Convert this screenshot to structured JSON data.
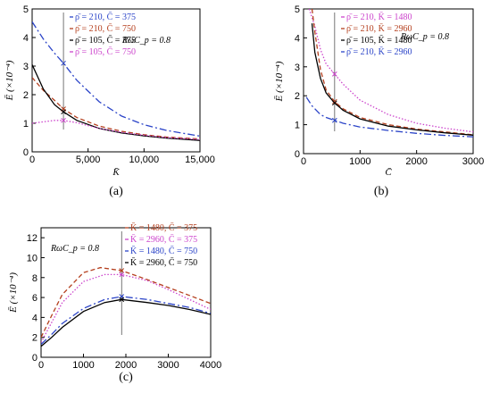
{
  "chart_data": [
    {
      "id": "a",
      "type": "line",
      "panel_label": "(a)",
      "xlabel": "K̄",
      "ylabel": "Ē (×10⁻⁴)",
      "annotation": "RωC_p = 0.8",
      "xlim": [
        0,
        15000
      ],
      "ylim": [
        0,
        5
      ],
      "xticks": [
        0,
        5000,
        10000,
        15000
      ],
      "xtick_labels": [
        "0",
        "5,000",
        "10,000",
        "15,000"
      ],
      "yticks": [
        0,
        1,
        2,
        3,
        4,
        5
      ],
      "ytick_labels": [
        "0",
        "1",
        "2",
        "3",
        "4",
        "5"
      ],
      "vline_x": 2800,
      "legend_position": "top-center",
      "series": [
        {
          "name": "ρ̄ = 210, C̄ = 375",
          "color": "#2b44c8",
          "dash": "8,3,2,3",
          "x": [
            0,
            1000,
            2000,
            2800,
            4000,
            6000,
            8000,
            10000,
            12000,
            15000
          ],
          "y": [
            4.55,
            3.95,
            3.45,
            3.1,
            2.5,
            1.75,
            1.25,
            0.95,
            0.75,
            0.55
          ]
        },
        {
          "name": "ρ̄ = 210, C̄ = 750",
          "color": "#b5401f",
          "dash": "5,3",
          "x": [
            0,
            1000,
            2000,
            2800,
            4000,
            6000,
            8000,
            10000,
            12000,
            15000
          ],
          "y": [
            2.6,
            2.15,
            1.8,
            1.5,
            1.2,
            0.9,
            0.72,
            0.6,
            0.52,
            0.45
          ]
        },
        {
          "name": "ρ̄ = 105, C̄ = 375",
          "color": "#000000",
          "dash": "",
          "x": [
            0,
            1000,
            2000,
            2800,
            4000,
            6000,
            8000,
            10000,
            12000,
            15000
          ],
          "y": [
            3.05,
            2.2,
            1.65,
            1.4,
            1.1,
            0.82,
            0.66,
            0.56,
            0.48,
            0.4
          ]
        },
        {
          "name": "ρ̄ = 105, C̄ = 750",
          "color": "#cc44cc",
          "dash": "1.5,2",
          "x": [
            0,
            1000,
            2000,
            2800,
            4000,
            6000,
            8000,
            10000,
            12000,
            15000
          ],
          "y": [
            1.0,
            1.05,
            1.1,
            1.1,
            1.02,
            0.82,
            0.68,
            0.58,
            0.5,
            0.43
          ]
        }
      ]
    },
    {
      "id": "b",
      "type": "line",
      "panel_label": "(b)",
      "xlabel": "C̄",
      "ylabel": "Ē (×10⁻⁴)",
      "annotation": "RωC_p = 0.8",
      "xlim": [
        0,
        3000
      ],
      "ylim": [
        0,
        5
      ],
      "xticks": [
        0,
        1000,
        2000,
        3000
      ],
      "xtick_labels": [
        "0",
        "1000",
        "2000",
        "3000"
      ],
      "yticks": [
        0,
        1,
        2,
        3,
        4,
        5
      ],
      "ytick_labels": [
        "0",
        "1",
        "2",
        "3",
        "4",
        "5"
      ],
      "vline_x": 550,
      "legend_position": "top-center",
      "series": [
        {
          "name": "ρ̄ = 210, K̄ = 1480",
          "color": "#cc44cc",
          "dash": "1.5,2",
          "x": [
            100,
            200,
            300,
            400,
            550,
            700,
            1000,
            1500,
            2000,
            2500,
            3000
          ],
          "y": [
            5.0,
            4.4,
            3.6,
            3.1,
            2.75,
            2.4,
            1.85,
            1.35,
            1.05,
            0.88,
            0.75
          ]
        },
        {
          "name": "ρ̄ = 210, K̄ = 2960",
          "color": "#b5401f",
          "dash": "5,3",
          "x": [
            150,
            200,
            300,
            400,
            550,
            700,
            1000,
            1500,
            2000,
            2500,
            3000
          ],
          "y": [
            5.0,
            4.2,
            2.9,
            2.2,
            1.8,
            1.55,
            1.25,
            1.0,
            0.85,
            0.75,
            0.65
          ]
        },
        {
          "name": "ρ̄ = 105, K̄ = 1480",
          "color": "#000000",
          "dash": "",
          "x": [
            150,
            200,
            300,
            400,
            550,
            700,
            1000,
            1500,
            2000,
            2500,
            3000
          ],
          "y": [
            4.5,
            3.5,
            2.6,
            2.1,
            1.75,
            1.5,
            1.2,
            0.95,
            0.82,
            0.72,
            0.64
          ]
        },
        {
          "name": "ρ̄ = 210, K̄ = 2960",
          "color": "#2b44c8",
          "dash": "8,3,2,3",
          "x": [
            50,
            150,
            300,
            400,
            550,
            700,
            1000,
            1500,
            2000,
            2500,
            3000
          ],
          "y": [
            1.95,
            1.65,
            1.35,
            1.25,
            1.15,
            1.05,
            0.92,
            0.8,
            0.7,
            0.63,
            0.58
          ]
        }
      ]
    },
    {
      "id": "c",
      "type": "line",
      "panel_label": "(c)",
      "xlabel": "",
      "ylabel": "Ē (×10⁻⁴)",
      "annotation": "RωC_p = 0.8",
      "xlim": [
        0,
        4000
      ],
      "ylim": [
        0,
        13
      ],
      "xticks": [
        0,
        1000,
        2000,
        3000,
        4000
      ],
      "xtick_labels": [
        "0",
        "1000",
        "2000",
        "3000",
        "4000"
      ],
      "yticks": [
        0,
        2,
        4,
        6,
        8,
        10,
        12
      ],
      "ytick_labels": [
        "0",
        "2",
        "4",
        "6",
        "8",
        "10",
        "12"
      ],
      "vline_x": 1900,
      "legend_position": "top-center",
      "series": [
        {
          "name": "K̄ = 1480, C̄ = 375",
          "color": "#b5401f",
          "dash": "5,3",
          "x": [
            0,
            250,
            500,
            1000,
            1400,
            1900,
            2500,
            3000,
            3500,
            4000
          ],
          "y": [
            2.0,
            4.2,
            6.3,
            8.5,
            9.0,
            8.7,
            7.8,
            7.0,
            6.2,
            5.4
          ]
        },
        {
          "name": "K̄ = 2960, C̄ = 375",
          "color": "#cc44cc",
          "dash": "1.5,2",
          "x": [
            0,
            250,
            500,
            1000,
            1500,
            1900,
            2500,
            3000,
            3500,
            4000
          ],
          "y": [
            1.5,
            3.5,
            5.5,
            7.6,
            8.3,
            8.3,
            7.7,
            6.8,
            5.8,
            4.8
          ]
        },
        {
          "name": "K̄ = 1480, C̄ = 750",
          "color": "#2b44c8",
          "dash": "8,3,2,3",
          "x": [
            0,
            250,
            500,
            1000,
            1500,
            1900,
            2500,
            3000,
            3500,
            4000
          ],
          "y": [
            1.3,
            2.3,
            3.4,
            4.9,
            5.8,
            6.1,
            5.8,
            5.4,
            5.0,
            4.4
          ]
        },
        {
          "name": "K̄ = 2960, C̄ = 750",
          "color": "#000000",
          "dash": "",
          "x": [
            0,
            250,
            500,
            1000,
            1500,
            1900,
            2500,
            3000,
            3500,
            4000
          ],
          "y": [
            1.1,
            2.0,
            3.0,
            4.6,
            5.5,
            5.8,
            5.5,
            5.2,
            4.8,
            4.3
          ]
        }
      ]
    }
  ]
}
